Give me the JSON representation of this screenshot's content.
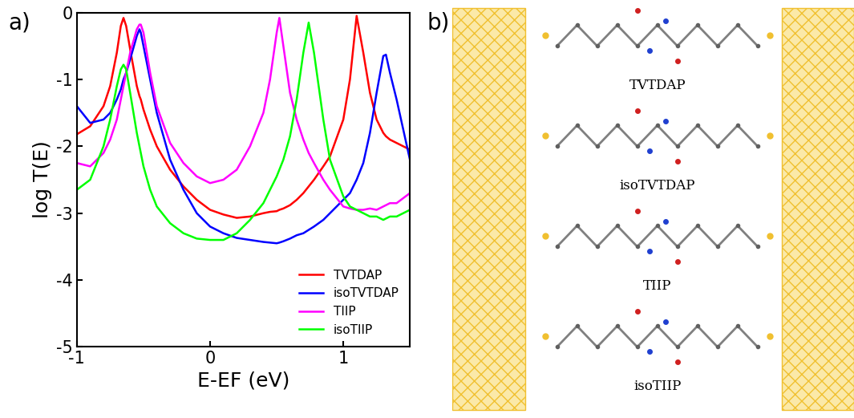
{
  "chart_data": {
    "type": "line",
    "xlabel": "E-EF (eV)",
    "ylabel": "log T(E)",
    "xlim": [
      -1,
      1.5
    ],
    "xticks": [
      -1,
      0,
      1
    ],
    "ylim": [
      -5,
      0
    ],
    "yticks": [
      -5,
      -4,
      -3,
      -2,
      -1,
      0
    ],
    "legend": "lower right",
    "grid": false,
    "x": [
      -1,
      -0.9,
      -0.8,
      -0.75,
      -0.7,
      -0.67,
      -0.65,
      -0.63,
      -0.6,
      -0.55,
      -0.53,
      -0.52,
      -0.5,
      -0.45,
      -0.4,
      -0.3,
      -0.2,
      -0.1,
      0,
      0.1,
      0.2,
      0.3,
      0.4,
      0.45,
      0.5,
      0.52,
      0.55,
      0.6,
      0.65,
      0.7,
      0.74,
      0.78,
      0.85,
      0.9,
      1.0,
      1.05,
      1.1,
      1.15,
      1.2,
      1.25,
      1.3,
      1.32,
      1.35,
      1.4,
      1.5
    ],
    "series": [
      {
        "name": "TVTDAP",
        "color": "#ff0000",
        "values": [
          -1.82,
          -1.7,
          -1.4,
          -1.1,
          -0.6,
          -0.2,
          -0.08,
          -0.2,
          -0.55,
          -1.1,
          -1.25,
          -1.3,
          -1.45,
          -1.75,
          -2.0,
          -2.35,
          -2.6,
          -2.8,
          -2.95,
          -3.02,
          -3.07,
          -3.05,
          -3.0,
          -2.98,
          -2.97,
          -2.95,
          -2.93,
          -2.88,
          -2.8,
          -2.7,
          -2.6,
          -2.5,
          -2.3,
          -2.15,
          -1.6,
          -1.0,
          -0.05,
          -0.6,
          -1.2,
          -1.6,
          -1.8,
          -1.85,
          -1.9,
          -1.95,
          -2.05
        ]
      },
      {
        "name": "isoTVTDAP",
        "color": "#0000ff",
        "values": [
          -1.4,
          -1.65,
          -1.6,
          -1.5,
          -1.3,
          -1.15,
          -1.0,
          -0.9,
          -0.7,
          -0.35,
          -0.25,
          -0.3,
          -0.5,
          -1.0,
          -1.5,
          -2.2,
          -2.65,
          -3.0,
          -3.2,
          -3.3,
          -3.37,
          -3.4,
          -3.43,
          -3.44,
          -3.45,
          -3.44,
          -3.42,
          -3.38,
          -3.33,
          -3.3,
          -3.25,
          -3.2,
          -3.1,
          -3.0,
          -2.8,
          -2.7,
          -2.5,
          -2.25,
          -1.8,
          -1.2,
          -0.65,
          -0.63,
          -0.9,
          -1.3,
          -2.2
        ]
      },
      {
        "name": "TIIP",
        "color": "#ff00ff",
        "values": [
          -2.25,
          -2.3,
          -2.1,
          -1.9,
          -1.6,
          -1.3,
          -1.1,
          -0.9,
          -0.6,
          -0.25,
          -0.18,
          -0.18,
          -0.3,
          -0.9,
          -1.4,
          -1.95,
          -2.25,
          -2.45,
          -2.55,
          -2.5,
          -2.35,
          -2.0,
          -1.5,
          -1.0,
          -0.3,
          -0.08,
          -0.5,
          -1.2,
          -1.6,
          -1.9,
          -2.1,
          -2.25,
          -2.5,
          -2.65,
          -2.9,
          -2.93,
          -2.95,
          -2.95,
          -2.93,
          -2.95,
          -2.9,
          -2.88,
          -2.85,
          -2.85,
          -2.7
        ]
      },
      {
        "name": "isoTIIP",
        "color": "#00ff00",
        "values": [
          -2.65,
          -2.5,
          -2.0,
          -1.6,
          -1.1,
          -0.85,
          -0.78,
          -0.85,
          -1.2,
          -1.8,
          -2.0,
          -2.1,
          -2.3,
          -2.65,
          -2.9,
          -3.15,
          -3.3,
          -3.38,
          -3.4,
          -3.4,
          -3.3,
          -3.1,
          -2.85,
          -2.65,
          -2.45,
          -2.35,
          -2.2,
          -1.85,
          -1.3,
          -0.6,
          -0.15,
          -0.6,
          -1.6,
          -2.2,
          -2.75,
          -2.9,
          -2.95,
          -3.0,
          -3.05,
          -3.05,
          -3.1,
          -3.08,
          -3.05,
          -3.05,
          -2.95
        ]
      }
    ]
  },
  "panel_labels": [
    "a)",
    "b)"
  ],
  "diagram": {
    "molecules": [
      "TVTDAP",
      "isoTVTDAP",
      "TIIP",
      "isoTIIP"
    ]
  }
}
